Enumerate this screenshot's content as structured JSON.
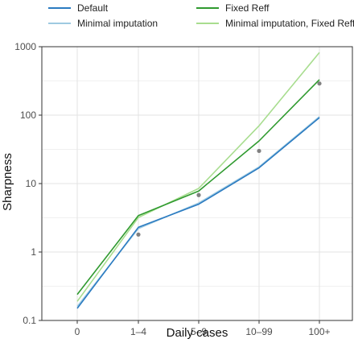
{
  "chart_data": {
    "type": "line",
    "title": "",
    "xlabel": "Daily cases",
    "ylabel": "Sharpness",
    "y_scale": "log10",
    "ylim": [
      0.1,
      1000
    ],
    "y_ticks": [
      "0.1",
      "1",
      "10",
      "100",
      "1000"
    ],
    "categories": [
      "0",
      "1–4",
      "5–9",
      "10–99",
      "100+"
    ],
    "grid": true,
    "legend_position": "top",
    "series": [
      {
        "name": "Default",
        "color": "#2b7bc1",
        "values": [
          0.15,
          2.3,
          5.0,
          17,
          92
        ]
      },
      {
        "name": "Fixed Reff",
        "color": "#2f9a2f",
        "values": [
          0.24,
          3.4,
          7.8,
          42,
          330
        ]
      },
      {
        "name": "Minimal imputation",
        "color": "#9ecae1",
        "values": [
          0.16,
          2.2,
          5.2,
          17.5,
          95
        ]
      },
      {
        "name": "Minimal imputation, Fixed Reff",
        "color": "#a8dd8f",
        "values": [
          0.19,
          3.2,
          8.5,
          70,
          820
        ]
      }
    ],
    "points": {
      "color": "#808080",
      "values": [
        null,
        1.8,
        6.8,
        30,
        290
      ]
    }
  }
}
